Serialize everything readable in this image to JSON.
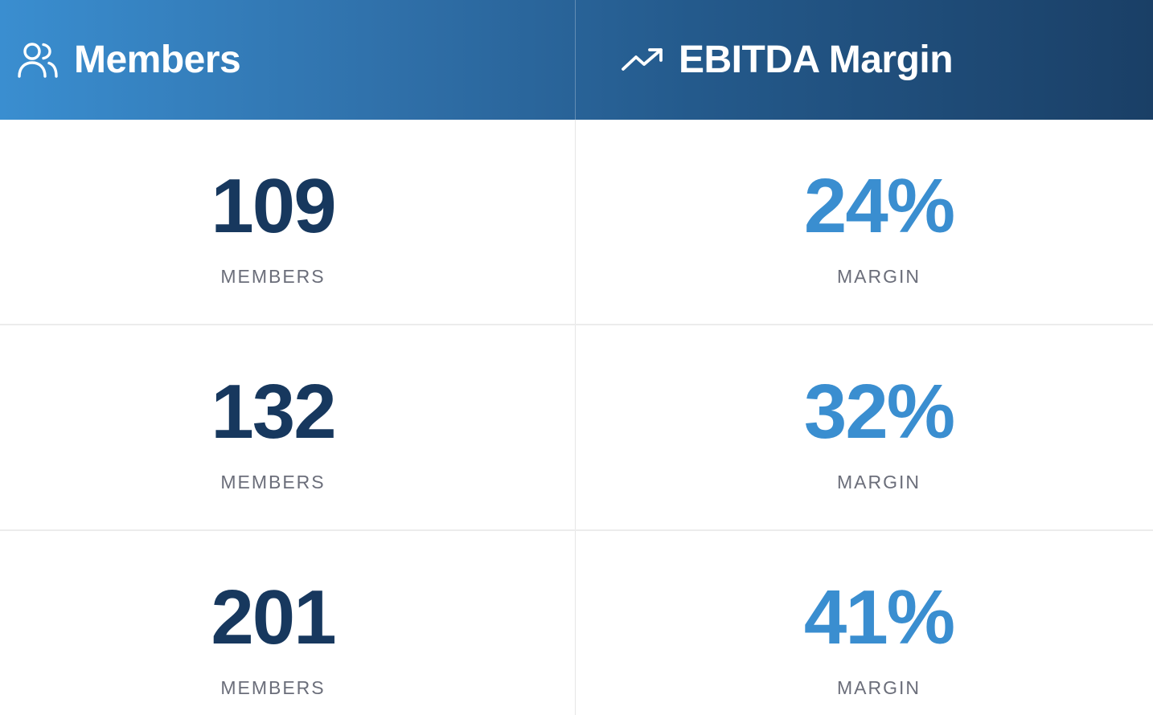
{
  "header": {
    "members_title": "Members",
    "margin_title": "EBITDA Margin",
    "members_icon": "users-icon",
    "margin_icon": "trending-up-icon"
  },
  "rows": [
    {
      "members_value": "109",
      "members_label": "MEMBERS",
      "margin_value": "24%",
      "margin_label": "MARGIN"
    },
    {
      "members_value": "132",
      "members_label": "MEMBERS",
      "margin_value": "32%",
      "margin_label": "MARGIN"
    },
    {
      "members_value": "201",
      "members_label": "MEMBERS",
      "margin_value": "41%",
      "margin_label": "MARGIN"
    }
  ],
  "colors": {
    "header_gradient_start": "#3a8ed0",
    "header_gradient_end": "#1a3f66",
    "members_value": "#17385e",
    "margin_value": "#3a8ed0",
    "label": "#6b6e7a"
  }
}
